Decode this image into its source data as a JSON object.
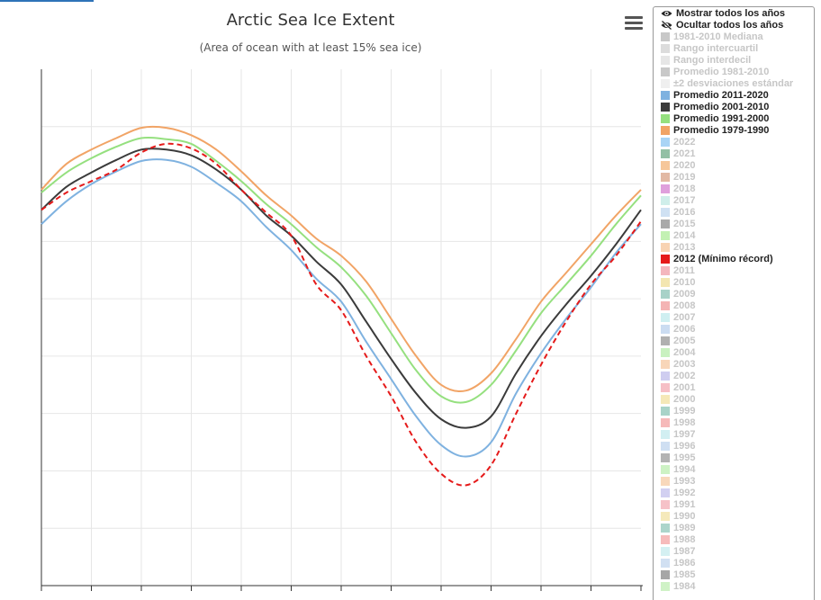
{
  "header": {
    "title": "Arctic Sea Ice Extent",
    "subtitle": "(Area of ocean with at least 15% sea ice)"
  },
  "toolbar": {
    "menu_icon": "hamburger-menu-icon"
  },
  "legend": {
    "show_all_label": "Mostrar todos los años",
    "hide_all_label": "Ocultar todos los años",
    "show_all_icon": "eye-icon",
    "hide_all_icon": "eye-slash-icon",
    "items": [
      {
        "label": "1981-2010 Mediana",
        "color": "#c8c8c8",
        "active": false
      },
      {
        "label": "Rango intercuartil",
        "color": "#dcdcdc",
        "active": false
      },
      {
        "label": "Rango interdecil",
        "color": "#e6e6e6",
        "active": false
      },
      {
        "label": "Promedio 1981-2010",
        "color": "#c8c8c8",
        "active": false
      },
      {
        "label": "±2 desviaciones estándar",
        "color": "#efefef",
        "active": false
      },
      {
        "label": "Promedio 2011-2020",
        "color": "#7fb2e0",
        "active": true
      },
      {
        "label": "Promedio 2001-2010",
        "color": "#3b3b3b",
        "active": true
      },
      {
        "label": "Promedio 1991-2000",
        "color": "#95e07f",
        "active": true
      },
      {
        "label": "Promedio 1979-1990",
        "color": "#f1a466",
        "active": true
      },
      {
        "label": "2022",
        "color": "#a9d4f5",
        "active": false
      },
      {
        "label": "2021",
        "color": "#93c0a5",
        "active": false
      },
      {
        "label": "2020",
        "color": "#f6c79a",
        "active": false
      },
      {
        "label": "2019",
        "color": "#e2b9a4",
        "active": false
      },
      {
        "label": "2018",
        "color": "#dfa0dc",
        "active": false
      },
      {
        "label": "2017",
        "color": "#cfeeea",
        "active": false
      },
      {
        "label": "2016",
        "color": "#cfe1f3",
        "active": false
      },
      {
        "label": "2015",
        "color": "#a9a9a9",
        "active": false
      },
      {
        "label": "2014",
        "color": "#c3f1b3",
        "active": false
      },
      {
        "label": "2013",
        "color": "#f8d3b2",
        "active": false
      },
      {
        "label": "2012 (Mínimo récord)",
        "color": "#e51a1a",
        "active": true
      },
      {
        "label": "2011",
        "color": "#f4b6bd",
        "active": false
      },
      {
        "label": "2010",
        "color": "#f3e6b1",
        "active": false
      },
      {
        "label": "2009",
        "color": "#a8d2c8",
        "active": false
      },
      {
        "label": "2008",
        "color": "#f4b4b4",
        "active": false
      },
      {
        "label": "2007",
        "color": "#cfeff1",
        "active": false
      },
      {
        "label": "2006",
        "color": "#cbdcf1",
        "active": false
      },
      {
        "label": "2005",
        "color": "#b0b0b0",
        "active": false
      },
      {
        "label": "2004",
        "color": "#c9f1c0",
        "active": false
      },
      {
        "label": "2003",
        "color": "#f8d6b9",
        "active": false
      },
      {
        "label": "2002",
        "color": "#cfcdf0",
        "active": false
      },
      {
        "label": "2001",
        "color": "#f6bfc6",
        "active": false
      },
      {
        "label": "2000",
        "color": "#f5e8b8",
        "active": false
      },
      {
        "label": "1999",
        "color": "#a9d3c8",
        "active": false
      },
      {
        "label": "1998",
        "color": "#f6b9b9",
        "active": false
      },
      {
        "label": "1997",
        "color": "#d2eff2",
        "active": false
      },
      {
        "label": "1996",
        "color": "#cfdff2",
        "active": false
      },
      {
        "label": "1995",
        "color": "#b3b3b3",
        "active": false
      },
      {
        "label": "1994",
        "color": "#cdf2c4",
        "active": false
      },
      {
        "label": "1993",
        "color": "#f8d8bb",
        "active": false
      },
      {
        "label": "1992",
        "color": "#d2d0f1",
        "active": false
      },
      {
        "label": "1991",
        "color": "#f6c2c8",
        "active": false
      },
      {
        "label": "1990",
        "color": "#f5e9bb",
        "active": false
      },
      {
        "label": "1989",
        "color": "#acd5cb",
        "active": false
      },
      {
        "label": "1988",
        "color": "#f6bbbb",
        "active": false
      },
      {
        "label": "1987",
        "color": "#d4f0f2",
        "active": false
      },
      {
        "label": "1986",
        "color": "#d1e0f2",
        "active": false
      },
      {
        "label": "1985",
        "color": "#a6a6a6",
        "active": false
      },
      {
        "label": "1984",
        "color": "#cff2c6",
        "active": false
      }
    ]
  },
  "chart_data": {
    "type": "line",
    "title": "Arctic Sea Ice Extent",
    "subtitle": "(Area of ocean with at least 15% sea ice)",
    "xlabel": "",
    "ylabel": "",
    "x": [
      0,
      1,
      2,
      3,
      4,
      5,
      6,
      7,
      8,
      9,
      10,
      11,
      12,
      13,
      14,
      15,
      16,
      17,
      18,
      19,
      20,
      21,
      22,
      23,
      24
    ],
    "xlim": [
      0,
      24
    ],
    "ylim": [
      0,
      9
    ],
    "grid": true,
    "legend_position": "right",
    "series": [
      {
        "name": "Promedio 1979-1990",
        "color": "#f1a466",
        "dash": false,
        "values": [
          6.9,
          7.35,
          7.6,
          7.8,
          7.98,
          7.98,
          7.85,
          7.6,
          7.22,
          6.8,
          6.45,
          6.05,
          5.75,
          5.3,
          4.65,
          4.0,
          3.5,
          3.4,
          3.7,
          4.3,
          4.95,
          5.45,
          5.95,
          6.45,
          6.9
        ]
      },
      {
        "name": "Promedio 1991-2000",
        "color": "#95e07f",
        "dash": false,
        "values": [
          6.85,
          7.2,
          7.45,
          7.65,
          7.8,
          7.78,
          7.7,
          7.4,
          7.05,
          6.65,
          6.3,
          5.9,
          5.55,
          5.05,
          4.4,
          3.75,
          3.3,
          3.2,
          3.5,
          4.1,
          4.75,
          5.25,
          5.75,
          6.3,
          6.8
        ]
      },
      {
        "name": "Promedio 2001-2010",
        "color": "#3b3b3b",
        "dash": false,
        "values": [
          6.55,
          6.95,
          7.2,
          7.42,
          7.6,
          7.6,
          7.5,
          7.25,
          6.9,
          6.45,
          6.1,
          5.65,
          5.25,
          4.6,
          3.95,
          3.35,
          2.9,
          2.75,
          2.95,
          3.7,
          4.35,
          4.9,
          5.4,
          5.95,
          6.55
        ]
      },
      {
        "name": "Promedio 2011-2020",
        "color": "#7fb2e0",
        "dash": false,
        "values": [
          6.3,
          6.7,
          7.0,
          7.22,
          7.4,
          7.42,
          7.3,
          7.02,
          6.7,
          6.25,
          5.85,
          5.35,
          4.95,
          4.25,
          3.6,
          2.95,
          2.45,
          2.25,
          2.5,
          3.35,
          4.05,
          4.65,
          5.2,
          5.8,
          6.3
        ]
      },
      {
        "name": "2012 (Mínimo récord)",
        "color": "#e51a1a",
        "dash": true,
        "values": [
          6.55,
          6.85,
          7.05,
          7.25,
          7.55,
          7.7,
          7.62,
          7.35,
          6.9,
          6.5,
          6.1,
          5.25,
          4.8,
          4.0,
          3.3,
          2.5,
          1.95,
          1.75,
          2.1,
          3.0,
          3.85,
          4.6,
          5.25,
          5.75,
          6.35
        ]
      }
    ]
  }
}
